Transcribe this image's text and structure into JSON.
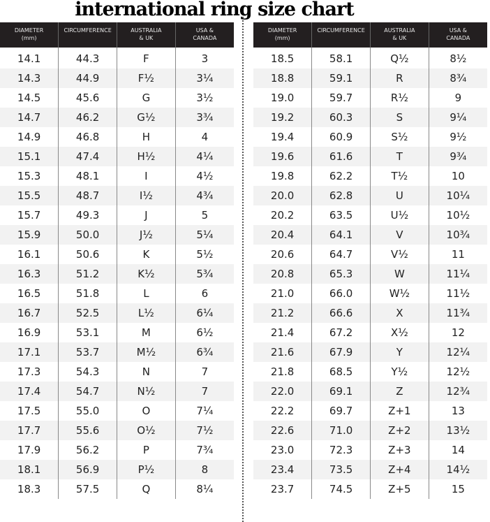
{
  "title": "international ring size chart",
  "headers": [
    "DIAMETER (mm)",
    "CIRCUMFERENCE",
    "AUSTRALIA & UK",
    "USA & CANADA"
  ],
  "left_rows": [
    [
      "14.1",
      "44.3",
      "F",
      "3"
    ],
    [
      "14.3",
      "44.9",
      "F½",
      "3¼"
    ],
    [
      "14.5",
      "45.6",
      "G",
      "3½"
    ],
    [
      "14.7",
      "46.2",
      "G½",
      "3¾"
    ],
    [
      "14.9",
      "46.8",
      "H",
      "4"
    ],
    [
      "15.1",
      "47.4",
      "H½",
      "4¼"
    ],
    [
      "15.3",
      "48.1",
      "I",
      "4½"
    ],
    [
      "15.5",
      "48.7",
      "I½",
      "4¾"
    ],
    [
      "15.7",
      "49.3",
      "J",
      "5"
    ],
    [
      "15.9",
      "50.0",
      "J½",
      "5¼"
    ],
    [
      "16.1",
      "50.6",
      "K",
      "5½"
    ],
    [
      "16.3",
      "51.2",
      "K½",
      "5¾"
    ],
    [
      "16.5",
      "51.8",
      "L",
      "6"
    ],
    [
      "16.7",
      "52.5",
      "L½",
      "6¼"
    ],
    [
      "16.9",
      "53.1",
      "M",
      "6½"
    ],
    [
      "17.1",
      "53.7",
      "M½",
      "6¾"
    ],
    [
      "17.3",
      "54.3",
      "N",
      "7"
    ],
    [
      "17.4",
      "54.7",
      "N½",
      "7"
    ],
    [
      "17.5",
      "55.0",
      "O",
      "7¼"
    ],
    [
      "17.7",
      "55.6",
      "O½",
      "7½"
    ],
    [
      "17.9",
      "56.2",
      "P",
      "7¾"
    ],
    [
      "18.1",
      "56.9",
      "P½",
      "8"
    ],
    [
      "18.3",
      "57.5",
      "Q",
      "8¼"
    ]
  ],
  "right_rows": [
    [
      "18.5",
      "58.1",
      "Q½",
      "8½"
    ],
    [
      "18.8",
      "59.1",
      "R",
      "8¾"
    ],
    [
      "19.0",
      "59.7",
      "R½",
      "9"
    ],
    [
      "19.2",
      "60.3",
      "S",
      "9¼"
    ],
    [
      "19.4",
      "60.9",
      "S½",
      "9½"
    ],
    [
      "19.6",
      "61.6",
      "T",
      "9¾"
    ],
    [
      "19.8",
      "62.2",
      "T½",
      "10"
    ],
    [
      "20.0",
      "62.8",
      "U",
      "10¼"
    ],
    [
      "20.2",
      "63.5",
      "U½",
      "10½"
    ],
    [
      "20.4",
      "64.1",
      "V",
      "10¾"
    ],
    [
      "20.6",
      "64.7",
      "V½",
      "11"
    ],
    [
      "20.8",
      "65.3",
      "W",
      "11¼"
    ],
    [
      "21.0",
      "66.0",
      "W½",
      "11½"
    ],
    [
      "21.2",
      "66.6",
      "X",
      "11¾"
    ],
    [
      "21.4",
      "67.2",
      "X½",
      "12"
    ],
    [
      "21.6",
      "67.9",
      "Y",
      "12¼"
    ],
    [
      "21.8",
      "68.5",
      "Y½",
      "12½"
    ],
    [
      "22.0",
      "69.1",
      "Z",
      "12¾"
    ],
    [
      "22.2",
      "69.7",
      "Z+1",
      "13"
    ],
    [
      "22.6",
      "71.0",
      "Z+2",
      "13½"
    ],
    [
      "23.0",
      "72.3",
      "Z+3",
      "14"
    ],
    [
      "23.4",
      "73.5",
      "Z+4",
      "14½"
    ],
    [
      "23.7",
      "74.5",
      "Z+5",
      "15"
    ]
  ],
  "colors": {
    "header_bg": "#231f20",
    "row_shade": "#f2f2f2"
  }
}
